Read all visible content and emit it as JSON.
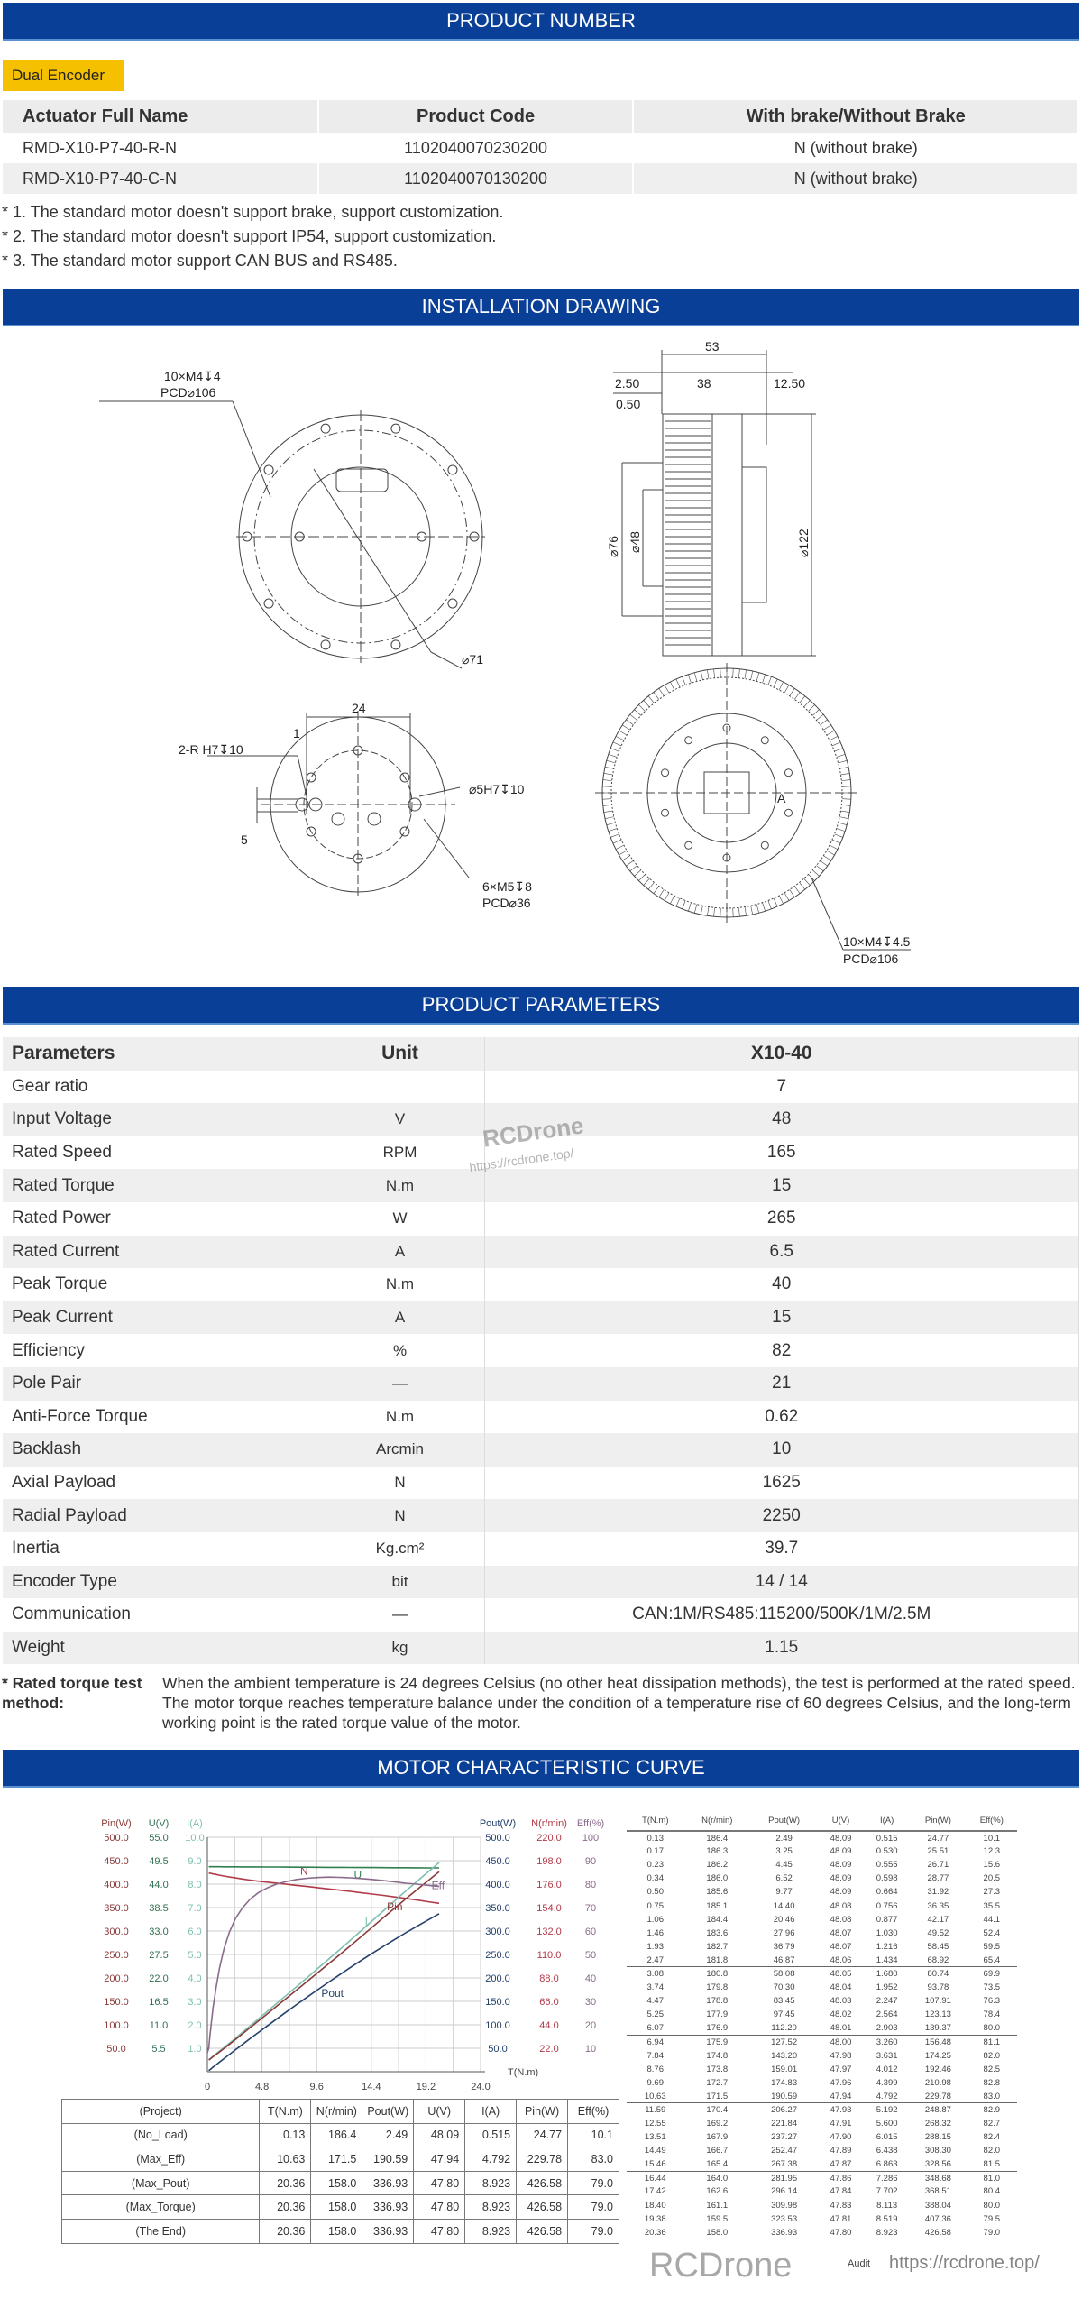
{
  "sections": {
    "product_number": "PRODUCT NUMBER",
    "installation": "INSTALLATION DRAWING",
    "parameters": "PRODUCT PARAMETERS",
    "curve": "MOTOR CHARACTERISTIC CURVE"
  },
  "badge": "Dual Encoder",
  "product_table": {
    "headers": [
      "Actuator Full Name",
      "Product Code",
      "With brake/Without Brake"
    ],
    "rows": [
      [
        "RMD-X10-P7-40-R-N",
        "1102040070230200",
        "N (without brake)"
      ],
      [
        "RMD-X10-P7-40-C-N",
        "1102040070130200",
        "N (without brake)"
      ]
    ]
  },
  "notes": [
    "* 1. The standard motor doesn't support brake, support customization.",
    "* 2. The standard motor doesn't support IP54, support customization.",
    "* 3. The standard motor support CAN BUS and RS485."
  ],
  "drawing": {
    "d1_holes": "10×M4↧4",
    "d1_pcd": "PCD⌀106",
    "d1_dia": "⌀71",
    "d2_total": "53",
    "d2_a": "2.50",
    "d2_b": "38",
    "d2_c": "12.50",
    "d2_d": "0.50",
    "d2_76": "⌀76",
    "d2_48": "⌀48",
    "d2_122": "⌀122",
    "d3_24": "24",
    "d3_1": "1",
    "d3_pin": "2-R H7↧10",
    "d3_5": "5",
    "d3_hole": "⌀5H7↧10",
    "d3_holes": "6×M5↧8",
    "d3_pcd": "PCD⌀36",
    "d4_holes": "10×M4↧4.5",
    "d4_pcd": "PCD⌀106",
    "d4_a": "A"
  },
  "params": {
    "headers": [
      "Parameters",
      "Unit",
      "X10-40"
    ],
    "rows": [
      [
        "Gear ratio",
        "",
        "7"
      ],
      [
        "Input Voltage",
        "V",
        "48"
      ],
      [
        "Rated Speed",
        "RPM",
        "165"
      ],
      [
        "Rated Torque",
        "N.m",
        "15"
      ],
      [
        "Rated Power",
        "W",
        "265"
      ],
      [
        "Rated Current",
        "A",
        "6.5"
      ],
      [
        "Peak Torque",
        "N.m",
        "40"
      ],
      [
        "Peak Current",
        "A",
        "15"
      ],
      [
        "Efficiency",
        "%",
        "82"
      ],
      [
        "Pole Pair",
        "—",
        "21"
      ],
      [
        "Anti-Force Torque",
        "N.m",
        "0.62"
      ],
      [
        "Backlash",
        "Arcmin",
        "10"
      ],
      [
        "Axial Payload",
        "N",
        "1625"
      ],
      [
        "Radial Payload",
        "N",
        "2250"
      ],
      [
        "Inertia",
        "Kg.cm²",
        "39.7"
      ],
      [
        "Encoder Type",
        "bit",
        "14 / 14"
      ],
      [
        "Communication",
        "—",
        "CAN:1M/RS485:115200/500K/1M/2.5M"
      ],
      [
        "Weight",
        "kg",
        "1.15"
      ]
    ]
  },
  "footnote": {
    "label": "* Rated torque test method:",
    "text": "When the ambient temperature is 24 degrees Celsius (no other heat dissipation methods), the test is performed at the rated speed. The motor torque reaches temperature balance under the condition of a temperature rise of 60 degrees Celsius, and the long-term working point is the rated torque value of the motor."
  },
  "watermark": {
    "brand": "RCDrone",
    "url": "https://rcdrone.top/",
    "audit": "Audit"
  },
  "chart_data": {
    "type": "line",
    "xlabel": "T(N.m)",
    "xlim": [
      0,
      24
    ],
    "xticks": [
      "0",
      "4.8",
      "9.6",
      "14.4",
      "19.2",
      "24.0"
    ],
    "grid": true,
    "axes": [
      {
        "label": "Pin(W)",
        "side": "left",
        "range": [
          0,
          500
        ],
        "ticks": [
          "500.0",
          "450.0",
          "400.0",
          "350.0",
          "300.0",
          "250.0",
          "200.0",
          "150.0",
          "100.0",
          "50.0"
        ],
        "color": "#8b3a3a"
      },
      {
        "label": "U(V)",
        "side": "left",
        "range": [
          0,
          55
        ],
        "ticks": [
          "55.0",
          "49.5",
          "44.0",
          "38.5",
          "33.0",
          "27.5",
          "22.0",
          "16.5",
          "11.0",
          "5.5"
        ],
        "color": "#2f6f4f"
      },
      {
        "label": "I(A)",
        "side": "left",
        "range": [
          0,
          10
        ],
        "ticks": [
          "10.0",
          "9.0",
          "8.0",
          "7.0",
          "6.0",
          "5.0",
          "4.0",
          "3.0",
          "2.0",
          "1.0"
        ],
        "color": "#7fbfb0"
      },
      {
        "label": "Pout(W)",
        "side": "right",
        "range": [
          0,
          500
        ],
        "ticks": [
          "500.0",
          "450.0",
          "400.0",
          "350.0",
          "300.0",
          "250.0",
          "200.0",
          "150.0",
          "100.0",
          "50.0"
        ],
        "color": "#24406b"
      },
      {
        "label": "N(r/min)",
        "side": "right",
        "range": [
          0,
          220
        ],
        "ticks": [
          "220.0",
          "198.0",
          "176.0",
          "154.0",
          "132.0",
          "110.0",
          "88.0",
          "66.0",
          "44.0",
          "22.0"
        ],
        "color": "#b03a48"
      },
      {
        "label": "Eff(%)",
        "side": "right",
        "range": [
          0,
          100
        ],
        "ticks": [
          "100",
          "90",
          "80",
          "70",
          "60",
          "50",
          "40",
          "30",
          "20",
          "10"
        ],
        "color": "#8a6a8a"
      }
    ],
    "series": [
      {
        "name": "N",
        "axis": 4,
        "col": 1,
        "color": "#b03a48"
      },
      {
        "name": "Pout",
        "axis": 3,
        "col": 2,
        "color": "#24406b"
      },
      {
        "name": "U",
        "axis": 1,
        "col": 3,
        "color": "#2f7f4f"
      },
      {
        "name": "I",
        "axis": 2,
        "col": 4,
        "color": "#7fbfb0"
      },
      {
        "name": "Pin",
        "axis": 0,
        "col": 5,
        "color": "#8b3a3a"
      },
      {
        "name": "Eff",
        "axis": 5,
        "col": 6,
        "color": "#8a6a8a"
      }
    ],
    "table_headers": [
      "T(N.m)",
      "N(r/min)",
      "Pout(W)",
      "U(V)",
      "I(A)",
      "Pin(W)",
      "Eff(%)"
    ],
    "table": [
      [
        0.13,
        186.4,
        2.49,
        48.09,
        0.515,
        24.77,
        10.1
      ],
      [
        0.17,
        186.3,
        3.25,
        48.09,
        0.53,
        25.51,
        12.3
      ],
      [
        0.23,
        186.2,
        4.45,
        48.09,
        0.555,
        26.71,
        15.6
      ],
      [
        0.34,
        186.0,
        6.52,
        48.09,
        0.598,
        28.77,
        20.5
      ],
      [
        0.5,
        185.6,
        9.77,
        48.09,
        0.664,
        31.92,
        27.3
      ],
      [
        0.75,
        185.1,
        14.4,
        48.08,
        0.756,
        36.35,
        35.5
      ],
      [
        1.06,
        184.4,
        20.46,
        48.08,
        0.877,
        42.17,
        44.1
      ],
      [
        1.46,
        183.6,
        27.96,
        48.07,
        1.03,
        49.52,
        52.4
      ],
      [
        1.93,
        182.7,
        36.79,
        48.07,
        1.216,
        58.45,
        59.5
      ],
      [
        2.47,
        181.8,
        46.87,
        48.06,
        1.434,
        68.92,
        65.4
      ],
      [
        3.08,
        180.8,
        58.08,
        48.05,
        1.68,
        80.74,
        69.9
      ],
      [
        3.74,
        179.8,
        70.3,
        48.04,
        1.952,
        93.78,
        73.5
      ],
      [
        4.47,
        178.8,
        83.45,
        48.03,
        2.247,
        107.91,
        76.3
      ],
      [
        5.25,
        177.9,
        97.45,
        48.02,
        2.564,
        123.13,
        78.4
      ],
      [
        6.07,
        176.9,
        112.2,
        48.01,
        2.903,
        139.37,
        80.0
      ],
      [
        6.94,
        175.9,
        127.52,
        48.0,
        3.26,
        156.48,
        81.1
      ],
      [
        7.84,
        174.8,
        143.2,
        47.98,
        3.631,
        174.25,
        82.0
      ],
      [
        8.76,
        173.8,
        159.01,
        47.97,
        4.012,
        192.46,
        82.5
      ],
      [
        9.69,
        172.7,
        174.83,
        47.96,
        4.399,
        210.98,
        82.8
      ],
      [
        10.63,
        171.5,
        190.59,
        47.94,
        4.792,
        229.78,
        83.0
      ],
      [
        11.59,
        170.4,
        206.27,
        47.93,
        5.192,
        248.87,
        82.9
      ],
      [
        12.55,
        169.2,
        221.84,
        47.91,
        5.6,
        268.32,
        82.7
      ],
      [
        13.51,
        167.9,
        237.27,
        47.9,
        6.015,
        288.15,
        82.4
      ],
      [
        14.49,
        166.7,
        252.47,
        47.89,
        6.438,
        308.3,
        82.0
      ],
      [
        15.46,
        165.4,
        267.38,
        47.87,
        6.863,
        328.56,
        81.5
      ],
      [
        16.44,
        164.0,
        281.95,
        47.86,
        7.286,
        348.68,
        81.0
      ],
      [
        17.42,
        162.6,
        296.14,
        47.84,
        7.702,
        368.51,
        80.4
      ],
      [
        18.4,
        161.1,
        309.98,
        47.83,
        8.113,
        388.04,
        80.0
      ],
      [
        19.38,
        159.5,
        323.53,
        47.81,
        8.519,
        407.36,
        79.5
      ],
      [
        20.36,
        158.0,
        336.93,
        47.8,
        8.923,
        426.58,
        79.0
      ]
    ],
    "decimals": [
      2,
      1,
      2,
      2,
      3,
      2,
      1
    ],
    "summary_headers": [
      "(Project)",
      "T(N.m)",
      "N(r/min)",
      "Pout(W)",
      "U(V)",
      "I(A)",
      "Pin(W)",
      "Eff(%)"
    ],
    "summary": [
      [
        "(No_Load)",
        "0.13",
        "186.4",
        "2.49",
        "48.09",
        "0.515",
        "24.77",
        "10.1"
      ],
      [
        "(Max_Eff)",
        "10.63",
        "171.5",
        "190.59",
        "47.94",
        "4.792",
        "229.78",
        "83.0"
      ],
      [
        "(Max_Pout)",
        "20.36",
        "158.0",
        "336.93",
        "47.80",
        "8.923",
        "426.58",
        "79.0"
      ],
      [
        "(Max_Torque)",
        "20.36",
        "158.0",
        "336.93",
        "47.80",
        "8.923",
        "426.58",
        "79.0"
      ],
      [
        "(The End)",
        "20.36",
        "158.0",
        "336.93",
        "47.80",
        "8.923",
        "426.58",
        "79.0"
      ]
    ]
  }
}
